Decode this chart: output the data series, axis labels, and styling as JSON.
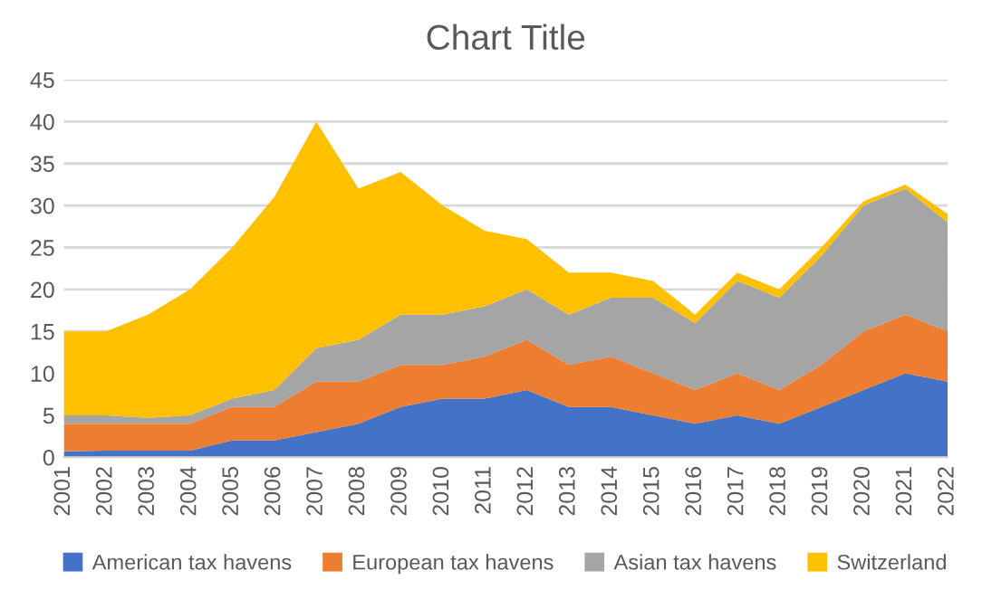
{
  "chart_data": {
    "type": "area",
    "title": "Chart Title",
    "stacked": true,
    "categories": [
      "2001",
      "2002",
      "2003",
      "2004",
      "2005",
      "2006",
      "2007",
      "2008",
      "2009",
      "2010",
      "2011",
      "2012",
      "2013",
      "2014",
      "2015",
      "2016",
      "2017",
      "2018",
      "2019",
      "2020",
      "2021",
      "2022"
    ],
    "series": [
      {
        "name": "American tax havens",
        "color": "#4472c4",
        "values": [
          0.7,
          0.8,
          0.8,
          0.8,
          2,
          2,
          3,
          4,
          6,
          7,
          7,
          8,
          6,
          6,
          5,
          4,
          5,
          4,
          6,
          8,
          10,
          9
        ]
      },
      {
        "name": "European tax havens",
        "color": "#ed7d31",
        "values": [
          3.3,
          3.2,
          3.2,
          3.2,
          4,
          4,
          6,
          5,
          5,
          4,
          5,
          6,
          5,
          6,
          5,
          4,
          5,
          4,
          5,
          7,
          7,
          6
        ]
      },
      {
        "name": "Asian tax havens",
        "color": "#a5a5a5",
        "values": [
          1,
          1,
          0.7,
          1,
          1,
          2,
          4,
          5,
          6,
          6,
          6,
          6,
          6,
          7,
          9,
          8,
          11,
          11,
          13,
          15,
          15,
          13
        ]
      },
      {
        "name": "Switzerland",
        "color": "#ffc000",
        "values": [
          10,
          10,
          12.3,
          15,
          18,
          23,
          27,
          18,
          17,
          13,
          9,
          6,
          5,
          3,
          2,
          1,
          1,
          1,
          1,
          0.5,
          0.5,
          1
        ]
      }
    ],
    "ylim": [
      0,
      45
    ],
    "yticks": [
      0,
      5,
      10,
      15,
      20,
      25,
      30,
      35,
      40,
      45
    ],
    "grid": "y",
    "legend": "bottom"
  }
}
